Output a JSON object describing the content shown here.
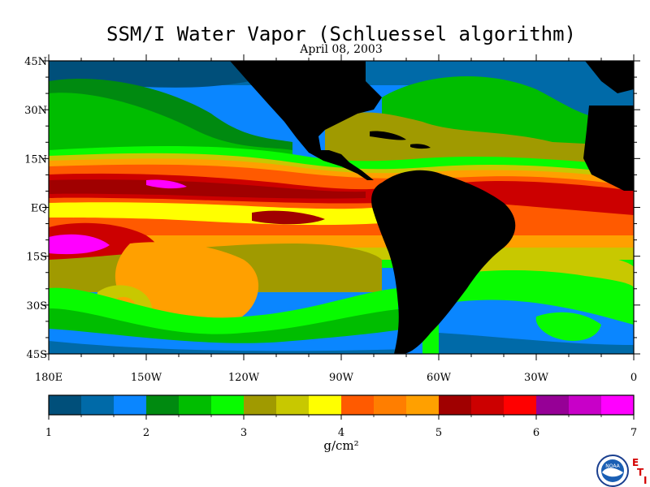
{
  "title": "SSM/I Water Vapor (Schluessel algorithm)",
  "date": "April 08, 2003",
  "map": {
    "lat_labels": [
      "45N",
      "30N",
      "15N",
      "EQ",
      "15S",
      "30S",
      "45S"
    ],
    "lon_labels": [
      "180E",
      "150W",
      "120W",
      "90W",
      "60W",
      "30W",
      "0"
    ],
    "land_color": "#000000"
  },
  "colorbar": {
    "colors": [
      "#004f7a",
      "#006aa8",
      "#0a86ff",
      "#008a10",
      "#00bd00",
      "#08fb00",
      "#a09a00",
      "#c8c800",
      "#ffff00",
      "#ff5a00",
      "#ff7e00",
      "#ffa000",
      "#a00000",
      "#cc0000",
      "#ff0000",
      "#960096",
      "#c800c8",
      "#ff00ff"
    ],
    "tick_labels": [
      "1",
      "2",
      "3",
      "4",
      "5",
      "6",
      "7"
    ],
    "unit": "g/cm²"
  },
  "logo": {
    "name": "NOAA",
    "mark": [
      "E",
      "T",
      "I"
    ]
  }
}
